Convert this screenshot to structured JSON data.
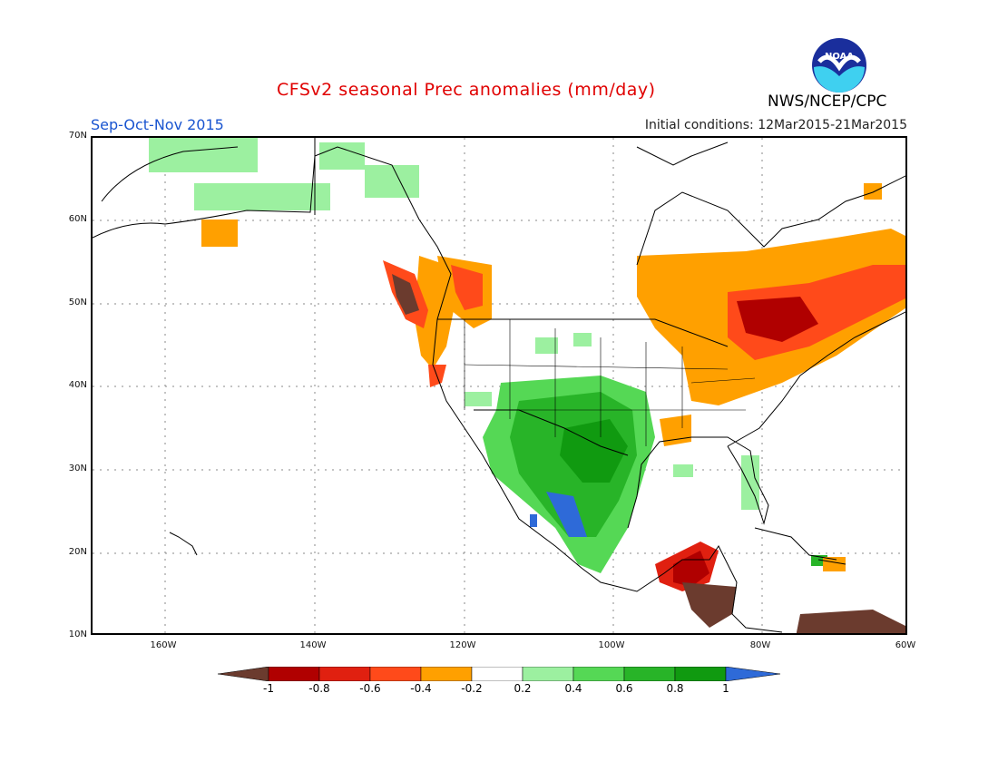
{
  "header": {
    "title": "CFSv2 seasonal Prec anomalies (mm/day)",
    "season": "Sep-Oct-Nov 2015",
    "initial_conditions": "Initial conditions: 12Mar2015-21Mar2015",
    "agency": "NWS/NCEP/CPC",
    "logo_text": "NOAA"
  },
  "axes": {
    "lat_labels": [
      "70N",
      "60N",
      "50N",
      "40N",
      "30N",
      "20N",
      "10N"
    ],
    "lon_labels": [
      "160W",
      "140W",
      "120W",
      "100W",
      "80W",
      "60W"
    ]
  },
  "colorbar": {
    "labels": [
      "-1",
      "-0.8",
      "-0.6",
      "-0.4",
      "-0.2",
      "0.2",
      "0.4",
      "0.6",
      "0.8",
      "1"
    ],
    "colors": [
      "#6b3b2e",
      "#b00000",
      "#e02010",
      "#ff4a1a",
      "#ffa000",
      "#ffffff",
      "#9cf0a0",
      "#55d855",
      "#28b428",
      "#109a10",
      "#2e6ad8"
    ]
  }
}
